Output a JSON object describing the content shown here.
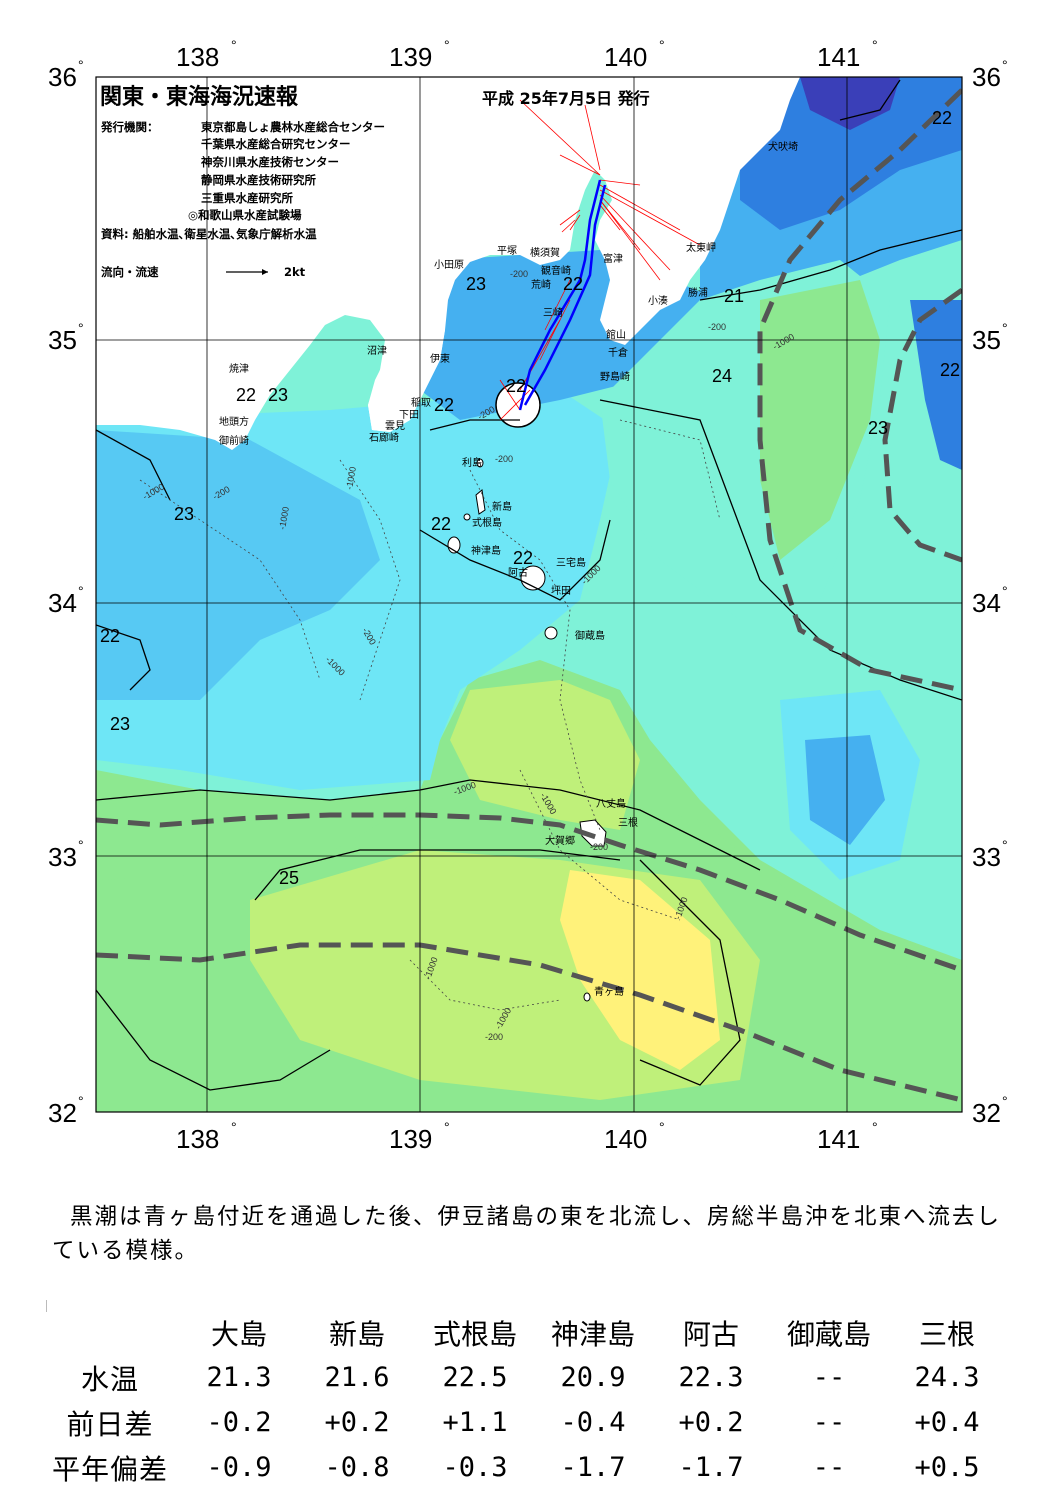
{
  "header": {
    "title": "関東・東海海況速報",
    "date": "平成 25年7月5日 発行",
    "issuer_label": "発行機関：",
    "issuers": [
      "東京都島しょ農林水産総合センター",
      "千葉県水産総合研究センター",
      "神奈川県水産技術センター",
      "静岡県水産技術研究所",
      "三重県水産研究所",
      "◎和歌山県水産試験場"
    ],
    "source": "資料: 船舶水温､衛星水温､気象庁解析水温",
    "flow_legend": "流向・流速",
    "flow_scale": "2kt"
  },
  "map": {
    "lon_labels": [
      "138",
      "139",
      "140",
      "141"
    ],
    "lat_labels": [
      "36",
      "35",
      "34",
      "33",
      "32"
    ],
    "degree_symbol": "°",
    "colors": {
      "t21": "#3a3fb8",
      "t22": "#2e7fe0",
      "t23": "#45b0f0",
      "t24": "#6ee6f6",
      "t24b": "#7ff2d8",
      "t25": "#8de890",
      "t26": "#bff07a",
      "t27": "#fff27a",
      "land": "#ffffff",
      "kuroshio": "#555555",
      "flow_red": "#ff0000",
      "flow_blue": "#0000ff"
    },
    "places": [
      {
        "name": "犬吠埼"
      },
      {
        "name": "太東岬"
      },
      {
        "name": "勝浦"
      },
      {
        "name": "小湊"
      },
      {
        "name": "富津"
      },
      {
        "name": "館山"
      },
      {
        "name": "千倉"
      },
      {
        "name": "野島崎"
      },
      {
        "name": "横須賀"
      },
      {
        "name": "観音崎"
      },
      {
        "name": "荒崎"
      },
      {
        "name": "三崎"
      },
      {
        "name": "平塚"
      },
      {
        "name": "小田原"
      },
      {
        "name": "沼津"
      },
      {
        "name": "伊東"
      },
      {
        "name": "稲取"
      },
      {
        "name": "下田"
      },
      {
        "name": "雲見"
      },
      {
        "name": "石廊崎"
      },
      {
        "name": "焼津"
      },
      {
        "name": "地頭方"
      },
      {
        "name": "御前崎"
      },
      {
        "name": "利島"
      },
      {
        "name": "新島"
      },
      {
        "name": "式根島"
      },
      {
        "name": "神津島"
      },
      {
        "name": "三宅島"
      },
      {
        "name": "阿古"
      },
      {
        "name": "坪田"
      },
      {
        "name": "御蔵島"
      },
      {
        "name": "八丈島"
      },
      {
        "name": "三根"
      },
      {
        "name": "大賀郷"
      },
      {
        "name": "青ヶ島"
      }
    ],
    "isotherm_labels": [
      "22",
      "22",
      "22",
      "23",
      "21",
      "24",
      "22",
      "23",
      "22",
      "23",
      "22",
      "22",
      "22",
      "23",
      "22",
      "23",
      "25"
    ],
    "depth_labels": [
      "-200",
      "-200",
      "-1000",
      "-200",
      "-200",
      "-1000",
      "-1000",
      "-1000",
      "-200",
      "-200",
      "-1000",
      "-1000",
      "-200",
      "-1000",
      "-1000",
      "-200",
      "-1000",
      "-1000",
      "-1000"
    ]
  },
  "summary": "黒潮は青ヶ島付近を通過した後、伊豆諸島の東を北流し、房総半島沖を北東へ流去している模様。",
  "table": {
    "columns": [
      "大島",
      "新島",
      "式根島",
      "神津島",
      "阿古",
      "御蔵島",
      "三根"
    ],
    "rows": [
      {
        "label": "水温",
        "values": [
          "21.3",
          "21.6",
          "22.5",
          "20.9",
          "22.3",
          "--",
          "24.3"
        ]
      },
      {
        "label": "前日差",
        "values": [
          "-0.2",
          "+0.2",
          "+1.1",
          "-0.4",
          "+0.2",
          "--",
          "+0.4"
        ]
      },
      {
        "label": "平年偏差",
        "values": [
          "-0.9",
          "-0.8",
          "-0.3",
          "-1.7",
          "-1.7",
          "--",
          "+0.5"
        ]
      }
    ]
  }
}
